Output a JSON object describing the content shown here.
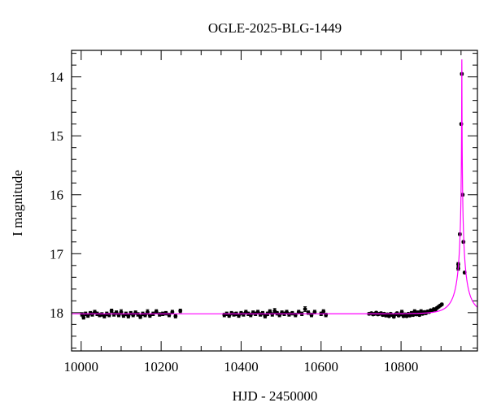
{
  "chart_data": {
    "type": "scatter",
    "title": "OGLE-2025-BLG-1449",
    "xlabel": "HJD - 2450000",
    "ylabel": "I magnitude",
    "xlim": [
      9976,
      10991
    ],
    "ylim": [
      18.65,
      13.55
    ],
    "y_inverted": true,
    "grid": false,
    "x_major_ticks": [
      10000,
      10200,
      10400,
      10600,
      10800
    ],
    "x_tick_labels": [
      "10000",
      "10200",
      "10400",
      "10600",
      "10800"
    ],
    "x_minor_step": 50,
    "y_major_ticks": [
      14,
      15,
      16,
      17,
      18
    ],
    "y_tick_labels": [
      "14",
      "15",
      "16",
      "17",
      "18"
    ],
    "y_minor_step": 0.2,
    "colors": {
      "points": "#000000",
      "model": "#ff00ff"
    },
    "points": [
      [
        10002,
        18.03,
        0.03
      ],
      [
        10006,
        18.08,
        0.03
      ],
      [
        10011,
        18.02,
        0.03
      ],
      [
        10017,
        18.05,
        0.03
      ],
      [
        10023,
        18.01,
        0.03
      ],
      [
        10028,
        18.03,
        0.03
      ],
      [
        10034,
        17.99,
        0.03
      ],
      [
        10040,
        18.02,
        0.03
      ],
      [
        10046,
        18.04,
        0.03
      ],
      [
        10052,
        18.03,
        0.03
      ],
      [
        10058,
        18.06,
        0.03
      ],
      [
        10064,
        18.02,
        0.03
      ],
      [
        10070,
        18.04,
        0.03
      ],
      [
        10076,
        17.97,
        0.03
      ],
      [
        10082,
        18.03,
        0.03
      ],
      [
        10088,
        18.0,
        0.03
      ],
      [
        10094,
        18.04,
        0.03
      ],
      [
        10100,
        17.99,
        0.04
      ],
      [
        10106,
        18.05,
        0.03
      ],
      [
        10112,
        18.02,
        0.03
      ],
      [
        10118,
        18.06,
        0.03
      ],
      [
        10124,
        18.01,
        0.03
      ],
      [
        10130,
        18.04,
        0.03
      ],
      [
        10136,
        18.0,
        0.03
      ],
      [
        10142,
        18.03,
        0.03
      ],
      [
        10148,
        18.07,
        0.03
      ],
      [
        10154,
        18.02,
        0.03
      ],
      [
        10160,
        18.04,
        0.03
      ],
      [
        10166,
        17.99,
        0.04
      ],
      [
        10172,
        18.05,
        0.03
      ],
      [
        10180,
        18.02,
        0.03
      ],
      [
        10188,
        17.98,
        0.03
      ],
      [
        10196,
        18.03,
        0.03
      ],
      [
        10204,
        18.02,
        0.03
      ],
      [
        10212,
        18.01,
        0.03
      ],
      [
        10220,
        18.04,
        0.03
      ],
      [
        10228,
        17.99,
        0.03
      ],
      [
        10236,
        18.06,
        0.03
      ],
      [
        10248,
        17.97,
        0.03
      ],
      [
        10358,
        18.04,
        0.03
      ],
      [
        10364,
        18.02,
        0.03
      ],
      [
        10370,
        18.05,
        0.03
      ],
      [
        10376,
        18.01,
        0.03
      ],
      [
        10382,
        18.03,
        0.03
      ],
      [
        10388,
        18.02,
        0.03
      ],
      [
        10394,
        18.05,
        0.03
      ],
      [
        10400,
        18.01,
        0.03
      ],
      [
        10406,
        18.03,
        0.03
      ],
      [
        10412,
        17.99,
        0.03
      ],
      [
        10418,
        18.02,
        0.03
      ],
      [
        10424,
        18.04,
        0.03
      ],
      [
        10430,
        18.0,
        0.03
      ],
      [
        10436,
        18.02,
        0.03
      ],
      [
        10442,
        17.99,
        0.03
      ],
      [
        10448,
        18.03,
        0.03
      ],
      [
        10454,
        18.01,
        0.03
      ],
      [
        10460,
        18.06,
        0.03
      ],
      [
        10466,
        18.02,
        0.03
      ],
      [
        10472,
        17.98,
        0.03
      ],
      [
        10478,
        18.03,
        0.03
      ],
      [
        10484,
        17.97,
        0.04
      ],
      [
        10490,
        18.01,
        0.03
      ],
      [
        10496,
        18.04,
        0.03
      ],
      [
        10502,
        18.0,
        0.03
      ],
      [
        10508,
        18.02,
        0.03
      ],
      [
        10514,
        17.99,
        0.03
      ],
      [
        10520,
        18.03,
        0.03
      ],
      [
        10528,
        18.01,
        0.03
      ],
      [
        10536,
        18.04,
        0.03
      ],
      [
        10544,
        17.99,
        0.03
      ],
      [
        10552,
        18.02,
        0.03
      ],
      [
        10560,
        17.94,
        0.04
      ],
      [
        10568,
        18.0,
        0.03
      ],
      [
        10576,
        18.04,
        0.03
      ],
      [
        10584,
        17.99,
        0.03
      ],
      [
        10600,
        18.02,
        0.03
      ],
      [
        10606,
        17.98,
        0.03
      ],
      [
        10612,
        18.04,
        0.03
      ],
      [
        10720,
        18.02,
        0.02
      ],
      [
        10726,
        18.01,
        0.02
      ],
      [
        10730,
        18.03,
        0.02
      ],
      [
        10734,
        18.02,
        0.02
      ],
      [
        10738,
        18.0,
        0.02
      ],
      [
        10742,
        18.03,
        0.02
      ],
      [
        10746,
        18.02,
        0.02
      ],
      [
        10750,
        18.01,
        0.02
      ],
      [
        10754,
        18.04,
        0.02
      ],
      [
        10758,
        18.02,
        0.02
      ],
      [
        10762,
        18.05,
        0.02
      ],
      [
        10766,
        18.03,
        0.02
      ],
      [
        10770,
        18.06,
        0.02
      ],
      [
        10774,
        18.02,
        0.02
      ],
      [
        10778,
        18.04,
        0.02
      ],
      [
        10782,
        18.07,
        0.02
      ],
      [
        10786,
        18.03,
        0.02
      ],
      [
        10790,
        18.01,
        0.02
      ],
      [
        10794,
        18.05,
        0.02
      ],
      [
        10798,
        18.03,
        0.02
      ],
      [
        10802,
        17.99,
        0.03
      ],
      [
        10806,
        18.06,
        0.02
      ],
      [
        10810,
        18.03,
        0.02
      ],
      [
        10814,
        18.06,
        0.02
      ],
      [
        10818,
        18.02,
        0.02
      ],
      [
        10822,
        18.05,
        0.02
      ],
      [
        10826,
        18.01,
        0.03
      ],
      [
        10830,
        18.04,
        0.02
      ],
      [
        10834,
        17.98,
        0.03
      ],
      [
        10838,
        18.03,
        0.02
      ],
      [
        10842,
        18.0,
        0.03
      ],
      [
        10846,
        18.04,
        0.02
      ],
      [
        10850,
        17.98,
        0.03
      ],
      [
        10854,
        18.02,
        0.02
      ],
      [
        10858,
        17.99,
        0.02
      ],
      [
        10862,
        18.01,
        0.02
      ],
      [
        10866,
        17.98,
        0.02
      ],
      [
        10870,
        17.99,
        0.02
      ],
      [
        10874,
        17.96,
        0.02
      ],
      [
        10878,
        17.97,
        0.02
      ],
      [
        10882,
        17.94,
        0.02
      ],
      [
        10886,
        17.95,
        0.02
      ],
      [
        10890,
        17.92,
        0.02
      ],
      [
        10894,
        17.9,
        0.02
      ],
      [
        10898,
        17.88,
        0.02
      ],
      [
        10902,
        17.86,
        0.02
      ],
      [
        10943,
        17.25,
        0.03
      ],
      [
        10943,
        17.18,
        0.03
      ],
      [
        10947,
        16.67,
        0.02
      ],
      [
        10950.5,
        14.8,
        0.02
      ],
      [
        10952,
        13.95,
        0.02
      ],
      [
        10954,
        16.0,
        0.02
      ],
      [
        10956,
        16.8,
        0.02
      ],
      [
        10959,
        17.32,
        0.02
      ]
    ],
    "model": {
      "type": "point-lens microlensing",
      "t0": 10952,
      "tE": 40,
      "u0": 0.0057,
      "blend_fs": 0.3,
      "baseline_mag": 18.02
    }
  }
}
